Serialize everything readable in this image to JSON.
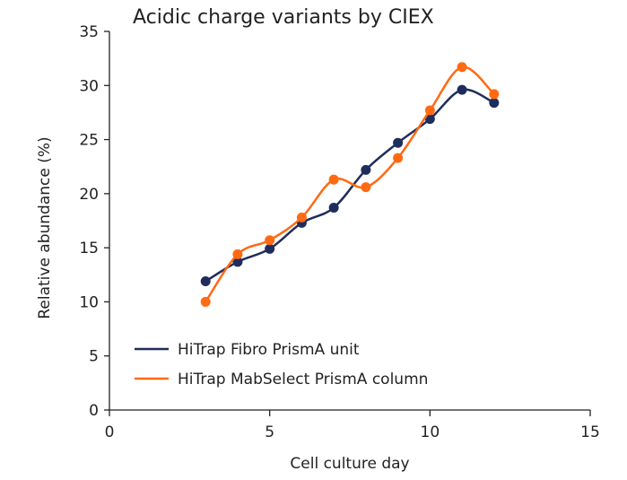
{
  "chart_data": {
    "type": "line",
    "title": "Acidic charge variants by CIEX",
    "xlabel": "Cell culture day",
    "ylabel": "Relative abundance (%)",
    "xlim": [
      0,
      15
    ],
    "ylim": [
      0,
      35
    ],
    "xticks": [
      0,
      5,
      10,
      15
    ],
    "yticks": [
      0,
      5,
      10,
      15,
      20,
      25,
      30,
      35
    ],
    "grid": false,
    "legend_position": "bottom-left",
    "x": [
      3,
      4,
      5,
      6,
      7,
      8,
      9,
      10,
      11,
      12
    ],
    "series": [
      {
        "name": "HiTrap Fibro PrismA unit",
        "color": "#1f2d5c",
        "values": [
          11.9,
          13.7,
          14.9,
          17.3,
          18.7,
          22.2,
          24.7,
          26.9,
          29.6,
          28.4
        ]
      },
      {
        "name": "HiTrap MabSelect PrismA column",
        "color": "#ff6a13",
        "values": [
          10.0,
          14.4,
          15.7,
          17.8,
          21.3,
          20.6,
          23.3,
          27.7,
          31.7,
          29.2
        ]
      }
    ]
  }
}
